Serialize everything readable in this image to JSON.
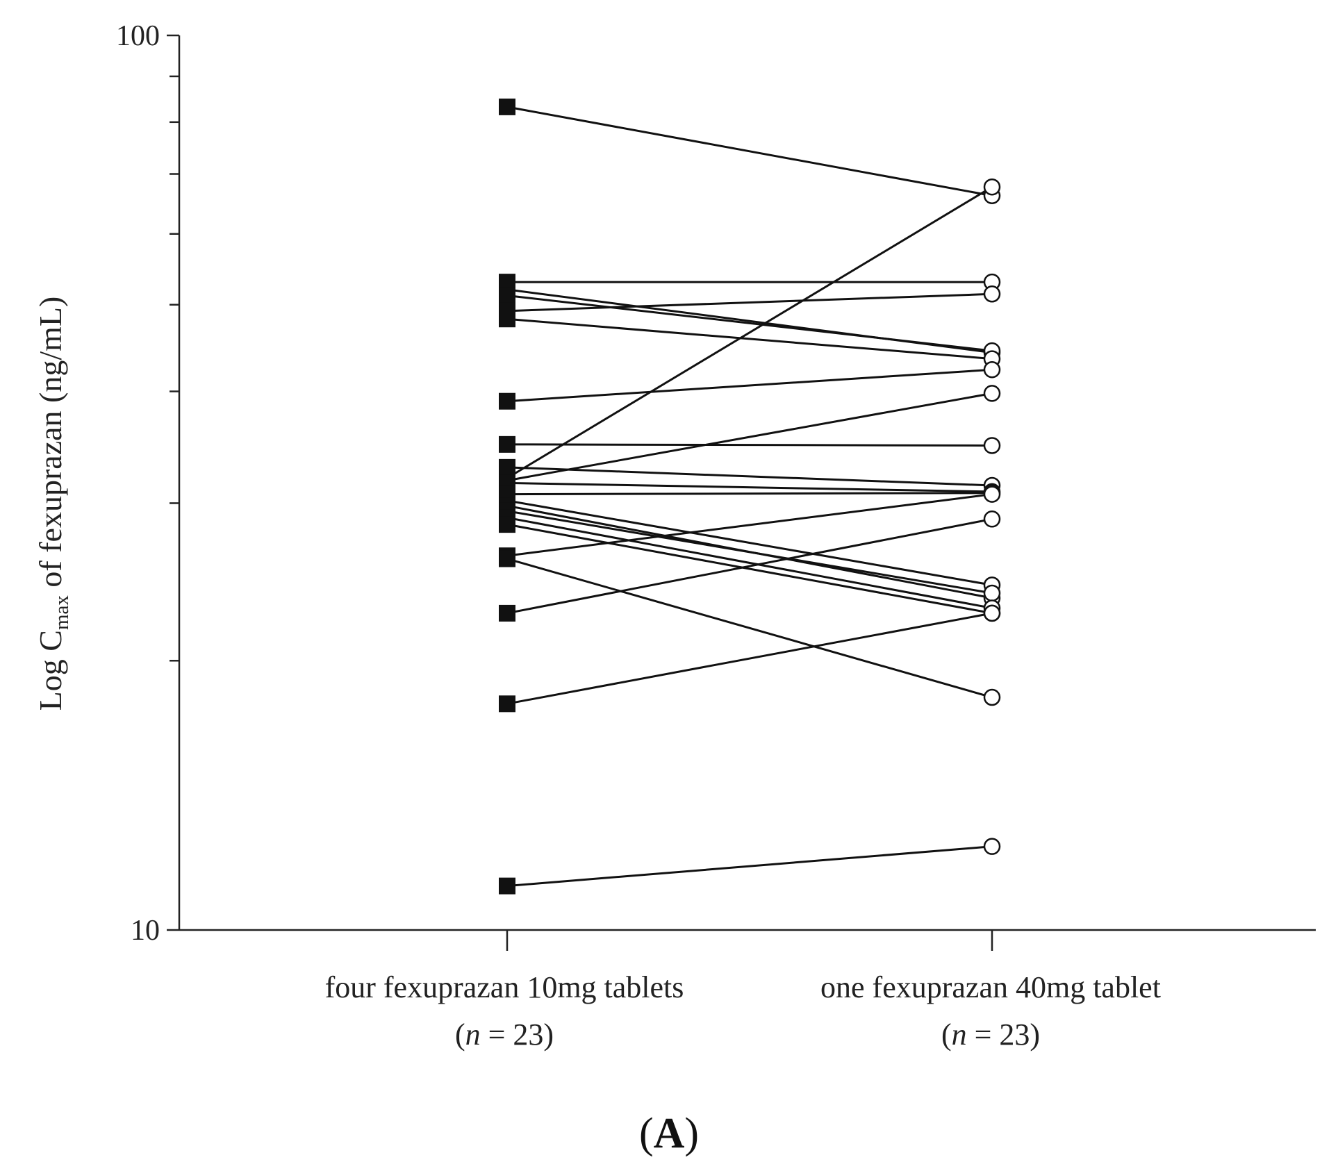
{
  "chart_data": {
    "type": "line",
    "title": "",
    "ylabel": {
      "prefix": "Log C",
      "subscript": "max",
      "suffix": " of fexuprazan (ng/mL)"
    },
    "yscale": "log",
    "ylim": [
      10,
      100
    ],
    "y_ticks": [
      {
        "value": 10,
        "label": "10"
      },
      {
        "value": 20,
        "label": ""
      },
      {
        "value": 30,
        "label": ""
      },
      {
        "value": 40,
        "label": ""
      },
      {
        "value": 50,
        "label": ""
      },
      {
        "value": 60,
        "label": ""
      },
      {
        "value": 70,
        "label": ""
      },
      {
        "value": 80,
        "label": ""
      },
      {
        "value": 90,
        "label": ""
      },
      {
        "value": 100,
        "label": "100"
      }
    ],
    "categories": [
      {
        "line1": "four fexuprazan 10mg tablets",
        "n_prefix": "(",
        "n_var": "n",
        "n_suffix": " = 23)"
      },
      {
        "line1": "one fexuprazan 40mg tablet",
        "n_prefix": "(",
        "n_var": "n",
        "n_suffix": " = 23)"
      }
    ],
    "markers": [
      "filled-square",
      "open-circle"
    ],
    "grid": false,
    "legend": "none",
    "subjects": [
      [
        83.2,
        66.2
      ],
      [
        53.0,
        53.0
      ],
      [
        52.0,
        44.2
      ],
      [
        51.2,
        44.4
      ],
      [
        49.2,
        51.4
      ],
      [
        48.2,
        43.5
      ],
      [
        39.0,
        42.3
      ],
      [
        34.9,
        34.8
      ],
      [
        32.9,
        31.4
      ],
      [
        32.0,
        67.7
      ],
      [
        31.8,
        39.8
      ],
      [
        31.6,
        30.9
      ],
      [
        30.7,
        30.8
      ],
      [
        30.2,
        24.3
      ],
      [
        29.8,
        23.5
      ],
      [
        29.4,
        23.8
      ],
      [
        28.9,
        22.9
      ],
      [
        28.4,
        22.6
      ],
      [
        26.2,
        30.7
      ],
      [
        26.0,
        18.2
      ],
      [
        22.6,
        28.8
      ],
      [
        17.9,
        22.6
      ],
      [
        11.2,
        12.4
      ]
    ],
    "panel_label": {
      "open": "(",
      "letter": "A",
      "close": ")"
    }
  },
  "colors": {
    "line": "#111111",
    "axis": "#222222",
    "marker_fill": "#111111",
    "open_marker_fill": "#ffffff"
  }
}
